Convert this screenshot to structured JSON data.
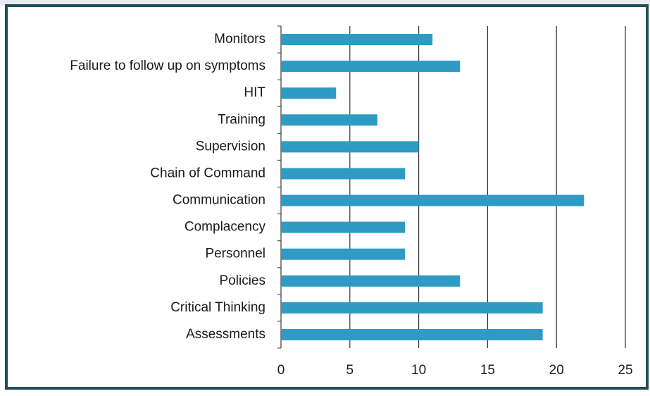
{
  "chart_data": {
    "type": "bar",
    "orientation": "horizontal",
    "categories": [
      "Monitors",
      "Failure to follow up on symptoms",
      "HIT",
      "Training",
      "Supervision",
      "Chain of Command",
      "Communication",
      "Complacency",
      "Personnel",
      "Policies",
      "Critical Thinking",
      "Assessments"
    ],
    "values": [
      11,
      13,
      4,
      7,
      10,
      9,
      22,
      9,
      9,
      13,
      19,
      19
    ],
    "color": "#2f9bc4",
    "xlim": [
      0,
      25
    ],
    "xticks": [
      0,
      5,
      10,
      15,
      20,
      25
    ],
    "grid": true
  }
}
